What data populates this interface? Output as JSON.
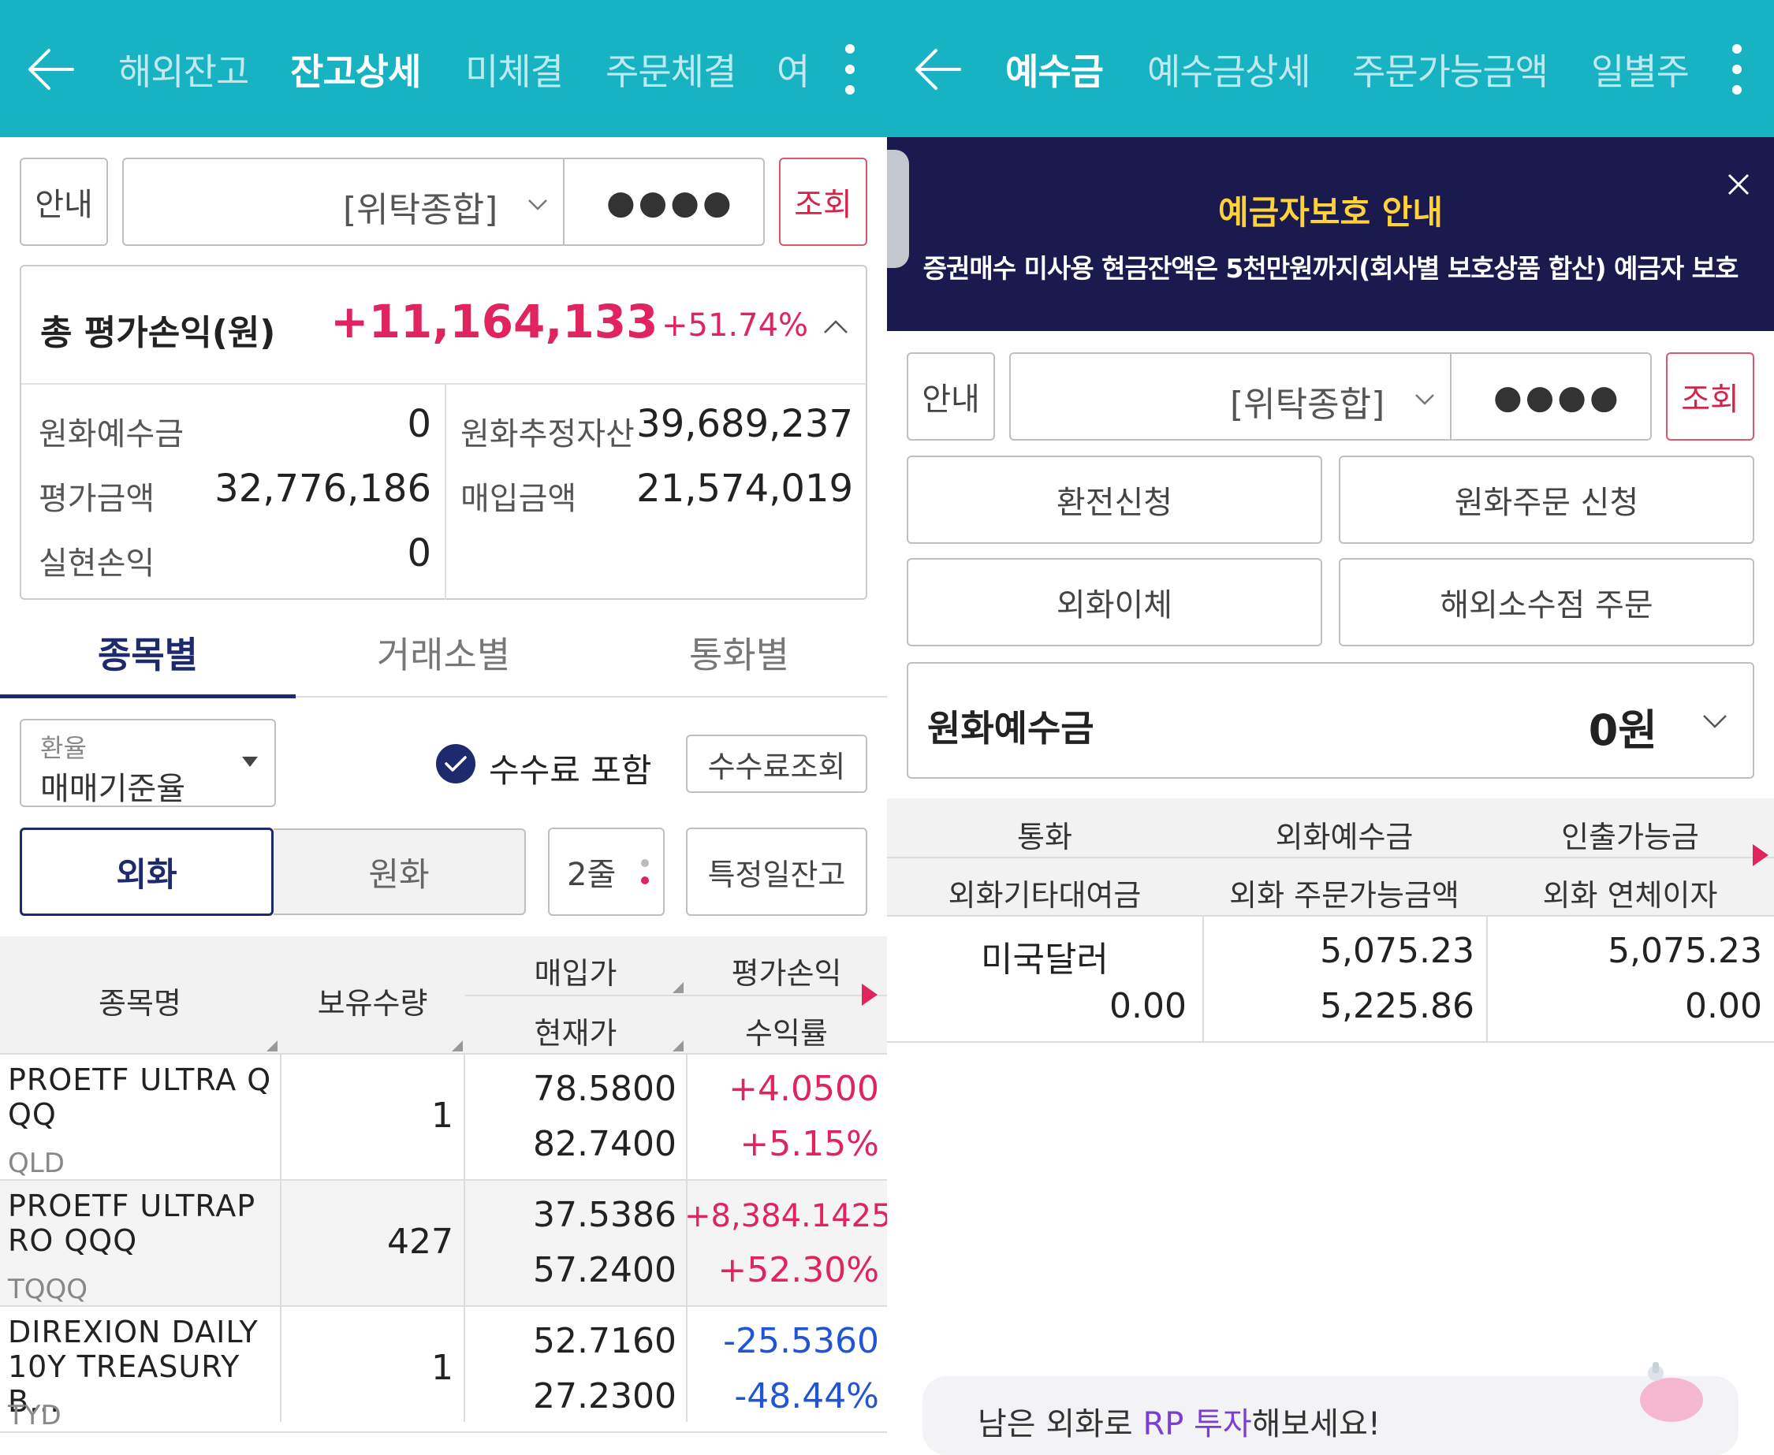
{
  "left": {
    "nav": {
      "tabs": [
        {
          "label": "해외잔고"
        },
        {
          "label": "잔고상세"
        },
        {
          "label": "미체결"
        },
        {
          "label": "주문체결"
        },
        {
          "label": "여"
        }
      ],
      "active_index": 1
    },
    "account": {
      "info_label": "안내",
      "account_type": "[위탁종합]",
      "password_mask": "●●●●",
      "query_label": "조회"
    },
    "summary": {
      "title": "총 평가손익(원)",
      "total_pl": "+11,164,133",
      "total_pl_pct": "+51.74%",
      "krw_deposit_label": "원화예수금",
      "krw_deposit_value": "0",
      "eval_amount_label": "평가금액",
      "eval_amount_value": "32,776,186",
      "realized_pl_label": "실현손익",
      "realized_pl_value": "0",
      "krw_est_assets_label": "원화추정자산",
      "krw_est_assets_value": "39,689,237",
      "purchase_amount_label": "매입금액",
      "purchase_amount_value": "21,574,019"
    },
    "sub_tabs": [
      {
        "label": "종목별"
      },
      {
        "label": "거래소별"
      },
      {
        "label": "통화별"
      }
    ],
    "filters": {
      "fx_rate_label": "환율",
      "fx_rate_value": "매매기준율",
      "include_fee_label": "수수료 포함",
      "include_fee_checked": true,
      "fee_query_label": "수수료조회",
      "currency_foreign": "외화",
      "currency_krw": "원화",
      "lines_label": "2줄",
      "specific_date_label": "특정일잔고"
    },
    "table": {
      "headers": {
        "name": "종목명",
        "qty": "보유수량",
        "buy_price": "매입가",
        "current_price": "현재가",
        "pl": "평가손익",
        "return_rate": "수익률"
      },
      "rows": [
        {
          "name": "PROETF ULTRA QQQ",
          "ticker": "QLD",
          "qty": "1",
          "buy_price": "78.5800",
          "current_price": "82.7400",
          "pl": "+4.0500",
          "return_rate": "+5.15%",
          "direction": "up"
        },
        {
          "name": "PROETF ULTRAPRO QQQ",
          "ticker": "TQQQ",
          "qty": "427",
          "buy_price": "37.5386",
          "current_price": "57.2400",
          "pl": "+8,384.1425",
          "return_rate": "+52.30%",
          "direction": "up"
        },
        {
          "name": "DIREXION DAILY 10Y TREASURY B...",
          "ticker": "TYD",
          "qty": "1",
          "buy_price": "52.7160",
          "current_price": "27.2300",
          "pl": "-25.5360",
          "return_rate": "-48.44%",
          "direction": "down"
        }
      ]
    }
  },
  "right": {
    "nav": {
      "tabs": [
        {
          "label": "예수금"
        },
        {
          "label": "예수금상세"
        },
        {
          "label": "주문가능금액"
        },
        {
          "label": "일별주"
        }
      ],
      "active_index": 0
    },
    "notice": {
      "title": "예금자보호 안내",
      "body": "증권매수 미사용 현금잔액은 5천만원까지(회사별 보호상품 합산) 예금자 보호"
    },
    "account": {
      "info_label": "안내",
      "account_type": "[위탁종합]",
      "password_mask": "●●●●",
      "query_label": "조회"
    },
    "actions": {
      "exchange": "환전신청",
      "krw_order": "원화주문 신청",
      "fx_transfer": "외화이체",
      "fractional_order": "해외소수점 주문"
    },
    "krw_deposit": {
      "label": "원화예수금",
      "value": "0원"
    },
    "fx_table": {
      "headers": {
        "currency": "통화",
        "fx_deposit": "외화예수금",
        "withdrawable": "인출가능금",
        "fx_other_loan": "외화기타대여금",
        "fx_orderable": "외화 주문가능금액",
        "fx_overdue_interest": "외화 연체이자"
      },
      "row": {
        "currency": "미국달러",
        "fx_other_loan": "0.00",
        "fx_deposit": "5,075.23",
        "fx_orderable": "5,225.86",
        "withdrawable": "5,075.23",
        "fx_overdue_interest": "0.00"
      }
    },
    "promo": {
      "text_prefix": "남은 외화로 ",
      "text_highlight": "RP 투자",
      "text_suffix": "해보세요!"
    }
  },
  "colors": {
    "topbar": "#17b3c3",
    "navy": "#1e2a6e",
    "up": "#e0245e",
    "down": "#2255d6",
    "notice_bg": "#1a1a4e",
    "notice_title": "#ffd23a"
  },
  "icons": [
    "back-arrow-icon",
    "more-vert-icon",
    "chevron-down-icon",
    "chevron-up-icon",
    "check-icon",
    "close-icon",
    "caret-right-icon",
    "piggy-bank-icon"
  ]
}
